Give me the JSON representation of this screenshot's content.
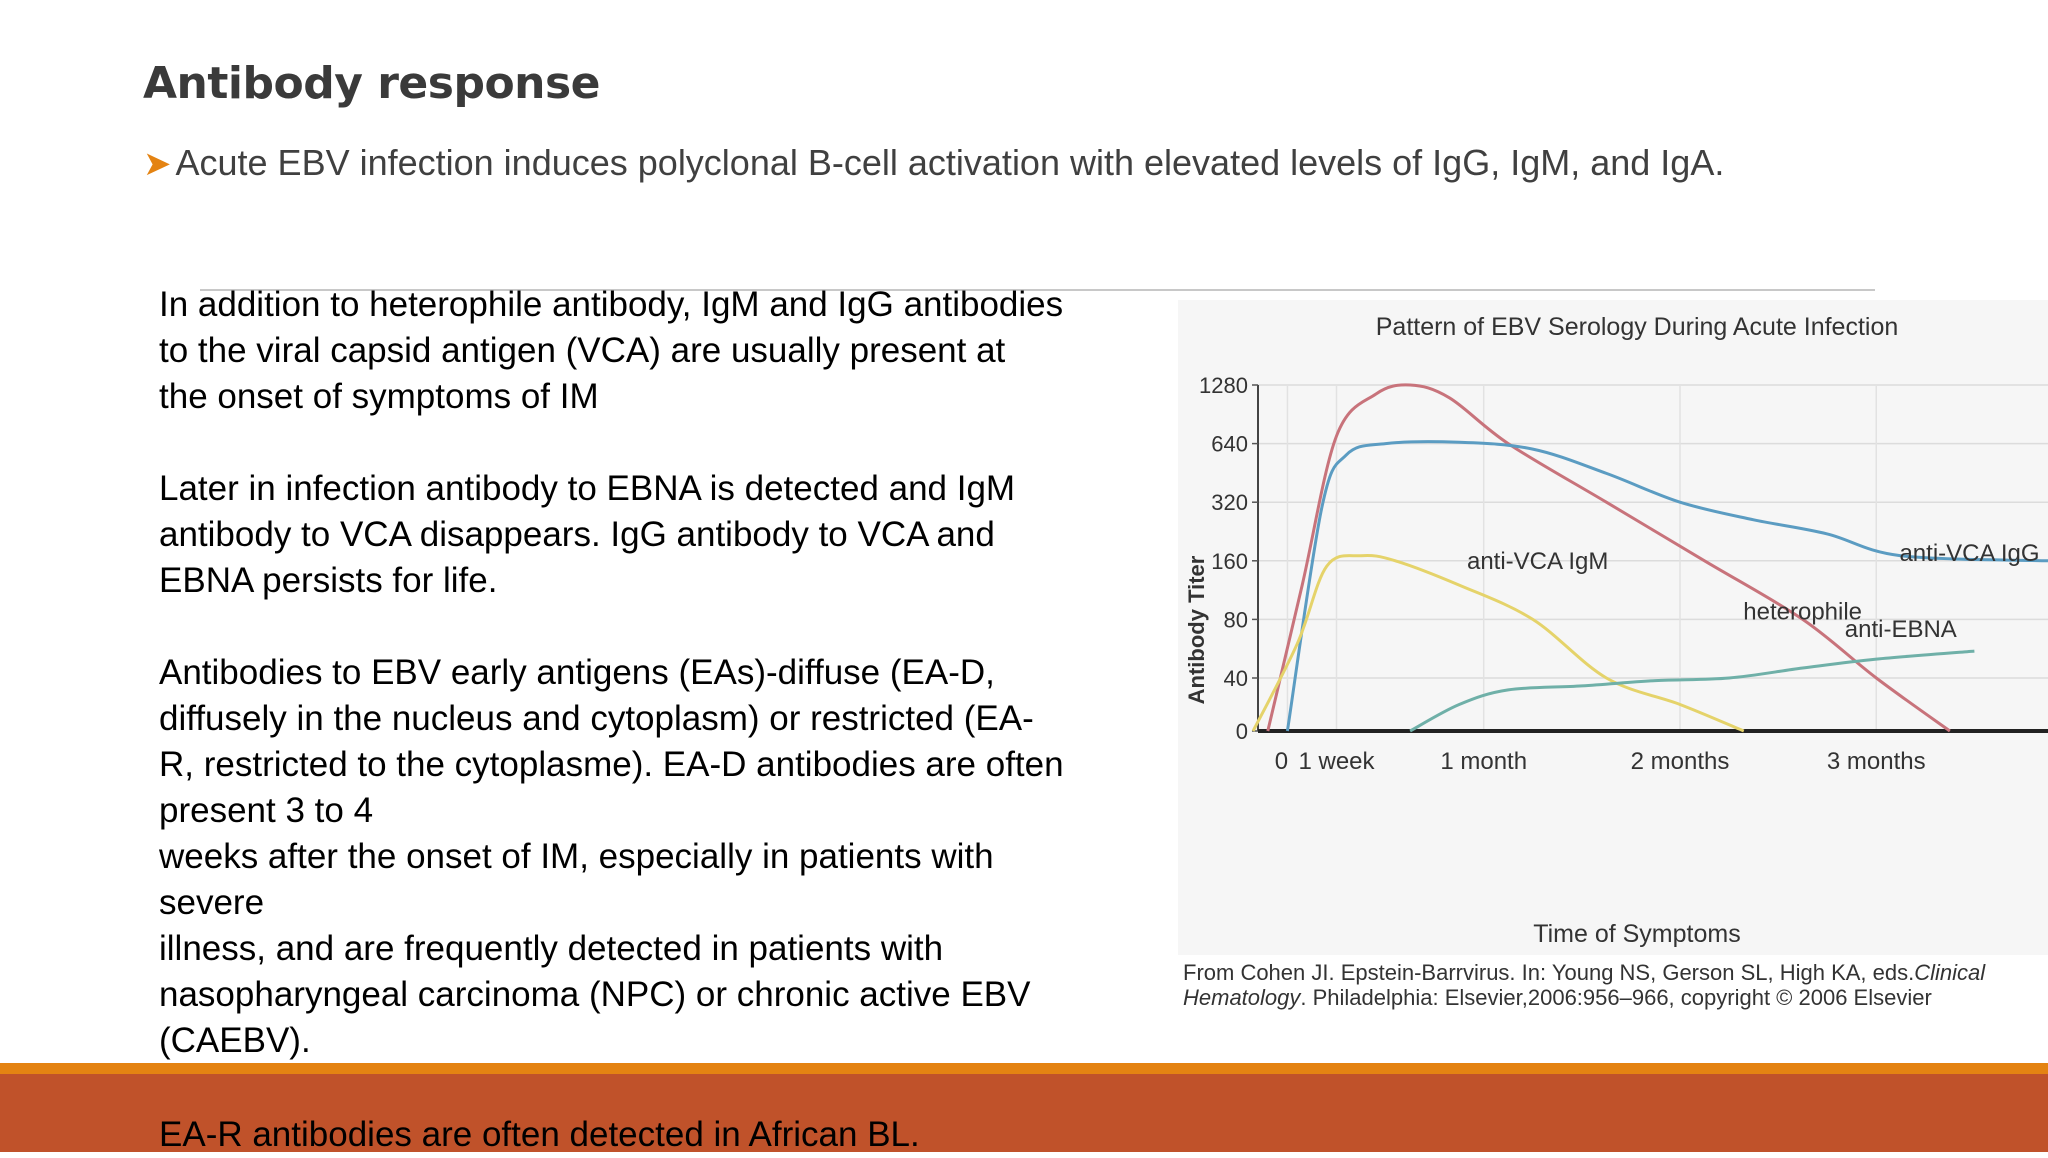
{
  "slide": {
    "title": "Antibody response",
    "bullet": "Acute EBV infection induces polyclonal B-cell activation with elevated levels of IgG, IgM, and IgA.",
    "paragraphs": [
      [
        "In addition to heterophile antibody, IgM and IgG antibodies",
        "to the viral capsid antigen (VCA) are usually present at",
        "the onset of symptoms of IM"
      ],
      [
        " Later in infection antibody to EBNA is detected and IgM",
        "antibody to VCA disappears. IgG antibody to VCA and",
        "EBNA persists for life."
      ],
      [
        "Antibodies to EBV early antigens (EAs)-diffuse (EA-D,",
        "diffusely in the nucleus and cytoplasm) or restricted (EA-",
        "R, restricted to the cytoplasme). EA-D antibodies are often",
        "present 3 to 4",
        "weeks after the onset of IM, especially in patients with",
        "severe",
        "illness, and are frequently detected in patients with",
        "nasopharyngeal carcinoma (NPC) or chronic active EBV",
        "(CAEBV)."
      ]
    ],
    "footer_line": "EA-R antibodies are often detected in African BL.",
    "caption": {
      "line1_pre": "From Cohen JI. Epstein-Barrvirus. In: Young NS, Gerson SL, High KA, eds.",
      "line1_italic": "Clinical",
      "line2_italic": "Hematology",
      "line2_post": ". Philadelphia: Elsevier,2006:956–966, copyright © 2006 Elsevier"
    },
    "colors": {
      "accent_orange": "#e48312",
      "footer_red": "#c0522a"
    }
  },
  "chart_data": {
    "type": "line",
    "title": "Pattern of EBV Serology During Acute Infection",
    "xlabel": "Time of Symptoms",
    "ylabel": "Antibody Titer",
    "y_ticks": [
      "0",
      "40",
      "80",
      "160",
      "320",
      "640",
      "1280"
    ],
    "x_ticks": [
      {
        "label": "0",
        "weeks": 0
      },
      {
        "label": "1 week",
        "weeks": 1
      },
      {
        "label": "1 month",
        "weeks": 4
      },
      {
        "label": "2 months",
        "weeks": 8
      },
      {
        "label": "3 months",
        "weeks": 12
      }
    ],
    "xlim_weeks": [
      -0.6,
      15.5
    ],
    "grid": true,
    "series": [
      {
        "name": "heterophile",
        "color": "#c8737b",
        "label_at": [
          10.5,
          80
        ],
        "points": [
          [
            -0.4,
            0
          ],
          [
            0.3,
            120
          ],
          [
            1,
            700
          ],
          [
            1.8,
            1150
          ],
          [
            2.5,
            1280
          ],
          [
            3.3,
            1100
          ],
          [
            4.5,
            640
          ],
          [
            6.5,
            320
          ],
          [
            8.5,
            160
          ],
          [
            10.5,
            80
          ],
          [
            12,
            40
          ],
          [
            13.5,
            0
          ]
        ]
      },
      {
        "name": "anti-VCA IgG",
        "color": "#5b9cc2",
        "label_at": [
          13.9,
          160
        ],
        "points": [
          [
            0,
            0
          ],
          [
            0.7,
            300
          ],
          [
            1.2,
            560
          ],
          [
            2,
            640
          ],
          [
            3.5,
            650
          ],
          [
            5,
            600
          ],
          [
            6.5,
            450
          ],
          [
            8,
            320
          ],
          [
            9.5,
            260
          ],
          [
            11,
            220
          ],
          [
            12.5,
            170
          ],
          [
            15.5,
            160
          ]
        ]
      },
      {
        "name": "anti-VCA IgM",
        "color": "#e5d36a",
        "label_at": [
          5.1,
          145
        ],
        "points": [
          [
            -0.7,
            0
          ],
          [
            0.2,
            60
          ],
          [
            0.8,
            150
          ],
          [
            1.5,
            170
          ],
          [
            2.2,
            160
          ],
          [
            3.5,
            120
          ],
          [
            5,
            80
          ],
          [
            6.5,
            40
          ],
          [
            8,
            20
          ],
          [
            9.3,
            0
          ]
        ]
      },
      {
        "name": "anti-EBNA",
        "color": "#6fb0a8",
        "label_at": [
          12.5,
          65
        ],
        "points": [
          [
            2.5,
            0
          ],
          [
            3.5,
            20
          ],
          [
            4.5,
            31
          ],
          [
            6,
            34
          ],
          [
            7.5,
            38
          ],
          [
            9,
            40
          ],
          [
            10.5,
            45
          ],
          [
            12,
            50
          ],
          [
            14,
            55
          ]
        ]
      }
    ]
  }
}
